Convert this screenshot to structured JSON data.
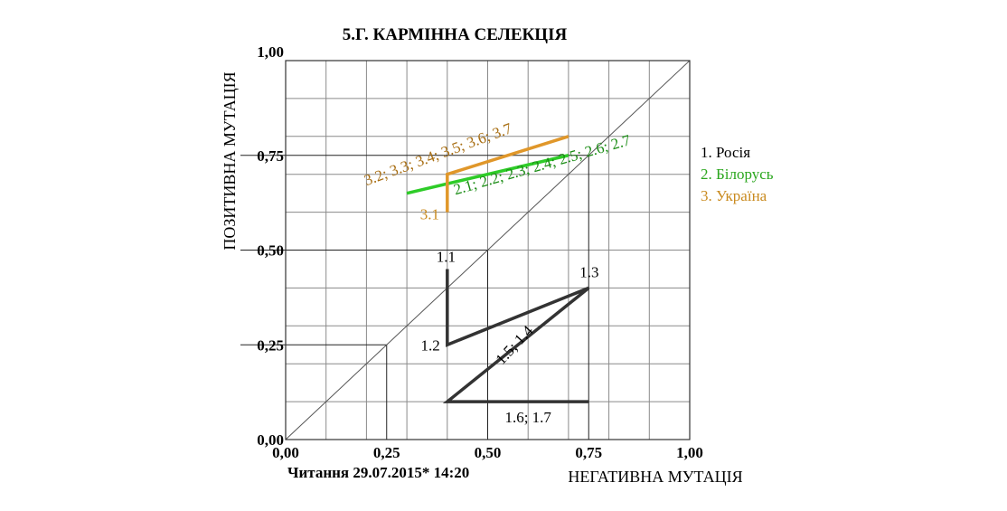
{
  "chart_data": {
    "type": "line",
    "title": "5.Г. КАРМІННА СЕЛЕКЦІЯ",
    "xlabel": "НЕГАТИВНА МУТАЦІЯ",
    "ylabel": "ПОЗИТИВНА МУТАЦІЯ",
    "xlim": [
      0,
      1
    ],
    "ylim": [
      0,
      1
    ],
    "grid": true,
    "x_ticks": [
      "0,00",
      "0,25",
      "0,50",
      "0,75",
      "1,00"
    ],
    "y_ticks": [
      "0,00",
      "0,25",
      "0,50",
      "0,75",
      "1,00"
    ],
    "legend_position": "right",
    "legend": [
      {
        "label": "1. Росія",
        "color": "#000000"
      },
      {
        "label": "2. Білорусь",
        "color": "#2aa61d"
      },
      {
        "label": "3. Україна",
        "color": "#c98a1e"
      }
    ],
    "series": [
      {
        "color": "#333333",
        "points": [
          [
            0.4,
            0.45
          ],
          [
            0.4,
            0.25
          ],
          [
            0.75,
            0.4
          ],
          [
            0.4,
            0.1
          ],
          [
            0.75,
            0.1
          ]
        ]
      },
      {
        "color": "#2ecc28",
        "points": [
          [
            0.3,
            0.65
          ],
          [
            0.7,
            0.75
          ]
        ]
      },
      {
        "color": "#e0972a",
        "points": [
          [
            0.4,
            0.6
          ],
          [
            0.4,
            0.7
          ],
          [
            0.7,
            0.8
          ]
        ]
      }
    ],
    "annotations": [
      {
        "text": "1.1",
        "x": 0.4,
        "y": 0.45,
        "color": "#000000"
      },
      {
        "text": "1.2",
        "x": 0.4,
        "y": 0.25,
        "color": "#000000"
      },
      {
        "text": "1.3",
        "x": 0.75,
        "y": 0.4,
        "color": "#000000"
      },
      {
        "text": "1.5; 1.4",
        "x": 0.575,
        "y": 0.25,
        "color": "#000000"
      },
      {
        "text": "1.6; 1.7",
        "x": 0.6,
        "y": 0.1,
        "color": "#000000"
      },
      {
        "text": "2.1; 2.2; 2.3; 2.4; 2.5; 2.6; 2.7",
        "x": 0.42,
        "y": 0.66,
        "color": "#1a8c14"
      },
      {
        "text": "3.1",
        "x": 0.4,
        "y": 0.6,
        "color": "#c98a1e"
      },
      {
        "text": "3.2; 3.3; 3.4; 3.5; 3.6; 3.7",
        "x": 0.2,
        "y": 0.67,
        "color": "#a86e12"
      }
    ],
    "footer": "Читання 29.07.2015* 14:20"
  }
}
